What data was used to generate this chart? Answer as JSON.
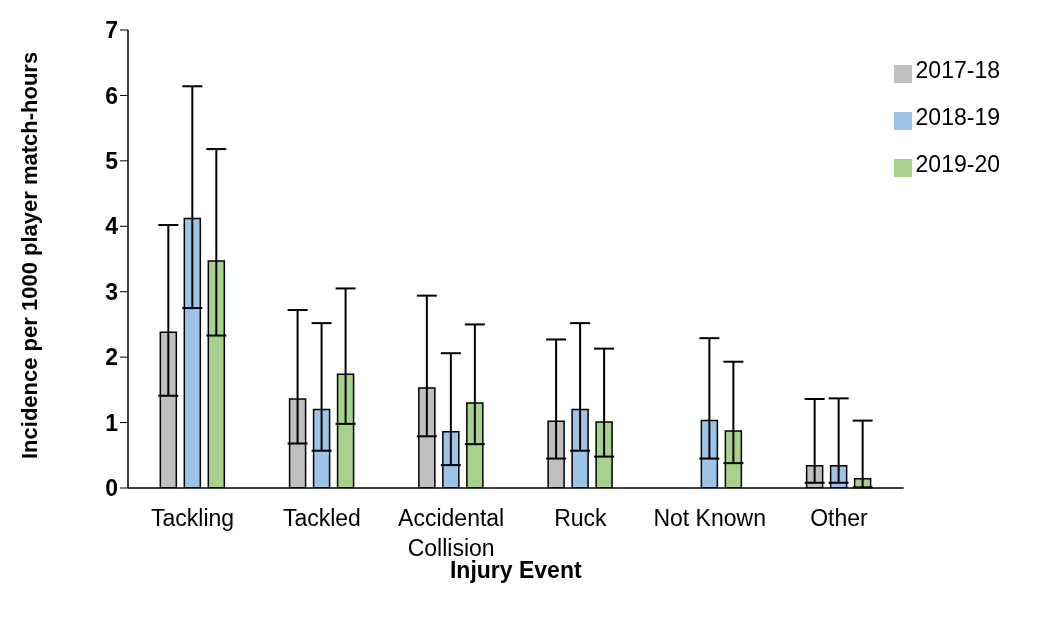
{
  "chart_data": {
    "type": "bar",
    "xlabel": "Injury Event",
    "ylabel": "Incidence per 1000 player match-hours",
    "categories": [
      "Tackling",
      "Tackled",
      "Accidental Collision",
      "Ruck",
      "Not Known",
      "Other"
    ],
    "series": [
      {
        "name": "2017-18",
        "color": "#bfbfbf",
        "values": [
          2.38,
          1.36,
          1.53,
          1.02,
          null,
          0.34
        ],
        "errors": [
          [
            1.41,
            4.02
          ],
          [
            0.68,
            2.72
          ],
          [
            0.79,
            2.94
          ],
          [
            0.45,
            2.27
          ],
          null,
          [
            0.08,
            1.36
          ]
        ]
      },
      {
        "name": "2018-19",
        "color": "#9dc3e6",
        "values": [
          4.12,
          1.2,
          0.86,
          1.2,
          1.03,
          0.34
        ],
        "errors": [
          [
            2.75,
            6.14
          ],
          [
            0.57,
            2.52
          ],
          [
            0.35,
            2.06
          ],
          [
            0.57,
            2.52
          ],
          [
            0.45,
            2.29
          ],
          [
            0.08,
            1.37
          ]
        ]
      },
      {
        "name": "2019-20",
        "color": "#a9d18e",
        "values": [
          3.47,
          1.74,
          1.3,
          1.01,
          0.87,
          0.14
        ],
        "errors": [
          [
            2.33,
            5.18
          ],
          [
            0.98,
            3.05
          ],
          [
            0.67,
            2.5
          ],
          [
            0.48,
            2.13
          ],
          [
            0.38,
            1.93
          ],
          [
            0.01,
            1.03
          ]
        ]
      }
    ],
    "ylim": [
      0,
      7
    ],
    "yticks": [
      0,
      1,
      2,
      3,
      4,
      5,
      6,
      7
    ],
    "grid": false,
    "legend": "top right"
  }
}
